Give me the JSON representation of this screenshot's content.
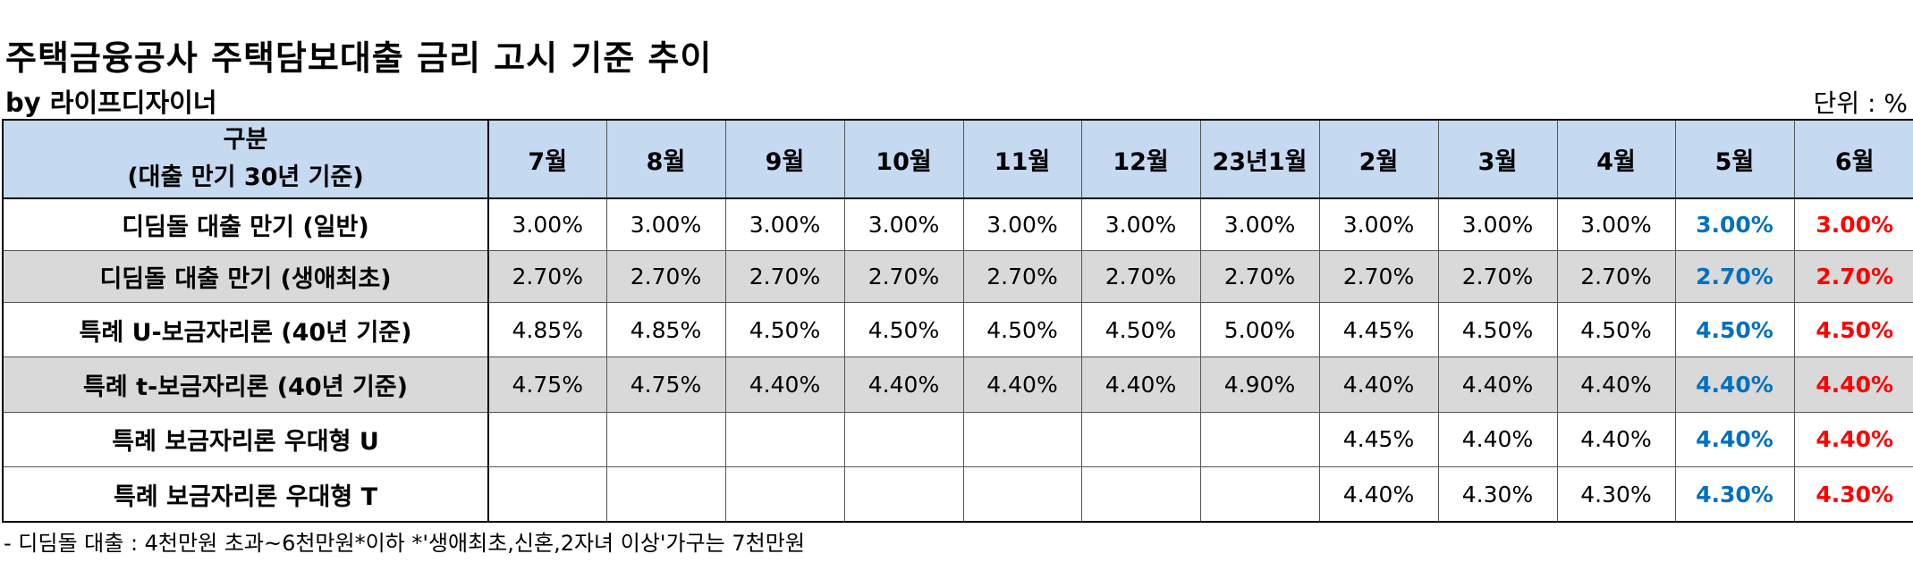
{
  "title": "주택금융공사 주택담보대출 금리 고시 기준 추이",
  "byline": "by 라이프디자이너",
  "unit": "단위 : %",
  "table": {
    "header_line1": "구분",
    "header_line2": "(대출 만기 30년 기준)",
    "months": [
      "7월",
      "8월",
      "9월",
      "10월",
      "11월",
      "12월",
      "23년1월",
      "2월",
      "3월",
      "4월",
      "5월",
      "6월"
    ],
    "rows": [
      {
        "label": "디딤돌 대출 만기 (일반)",
        "values": [
          "3.00%",
          "3.00%",
          "3.00%",
          "3.00%",
          "3.00%",
          "3.00%",
          "3.00%",
          "3.00%",
          "3.00%",
          "3.00%",
          "3.00%",
          "3.00%"
        ]
      },
      {
        "label": "디딤돌 대출 만기 (생애최초)",
        "values": [
          "2.70%",
          "2.70%",
          "2.70%",
          "2.70%",
          "2.70%",
          "2.70%",
          "2.70%",
          "2.70%",
          "2.70%",
          "2.70%",
          "2.70%",
          "2.70%"
        ]
      },
      {
        "label": "특례 U-보금자리론 (40년 기준)",
        "values": [
          "4.85%",
          "4.85%",
          "4.50%",
          "4.50%",
          "4.50%",
          "4.50%",
          "5.00%",
          "4.45%",
          "4.50%",
          "4.50%",
          "4.50%",
          "4.50%"
        ]
      },
      {
        "label": "특례 t-보금자리론 (40년 기준)",
        "values": [
          "4.75%",
          "4.75%",
          "4.40%",
          "4.40%",
          "4.40%",
          "4.40%",
          "4.90%",
          "4.40%",
          "4.40%",
          "4.40%",
          "4.40%",
          "4.40%"
        ]
      },
      {
        "label": "특례 보금자리론 우대형 U",
        "values": [
          "",
          "",
          "",
          "",
          "",
          "",
          "",
          "4.45%",
          "4.40%",
          "4.40%",
          "4.40%",
          "4.40%"
        ]
      },
      {
        "label": "특례 보금자리론 우대형 T",
        "values": [
          "",
          "",
          "",
          "",
          "",
          "",
          "",
          "4.40%",
          "4.30%",
          "4.30%",
          "4.30%",
          "4.30%"
        ]
      }
    ],
    "highlight_colors": {
      "may": "#0070c0",
      "june": "#ff0000",
      "header_bg": "#c5d9f1",
      "shaded_row_bg": "#d9d9d9"
    }
  },
  "note": "- 디딤돌 대출 : 4천만원 초과~6천만원*이하 *'생애최초,신혼,2자녀 이상'가구는 7천만원"
}
